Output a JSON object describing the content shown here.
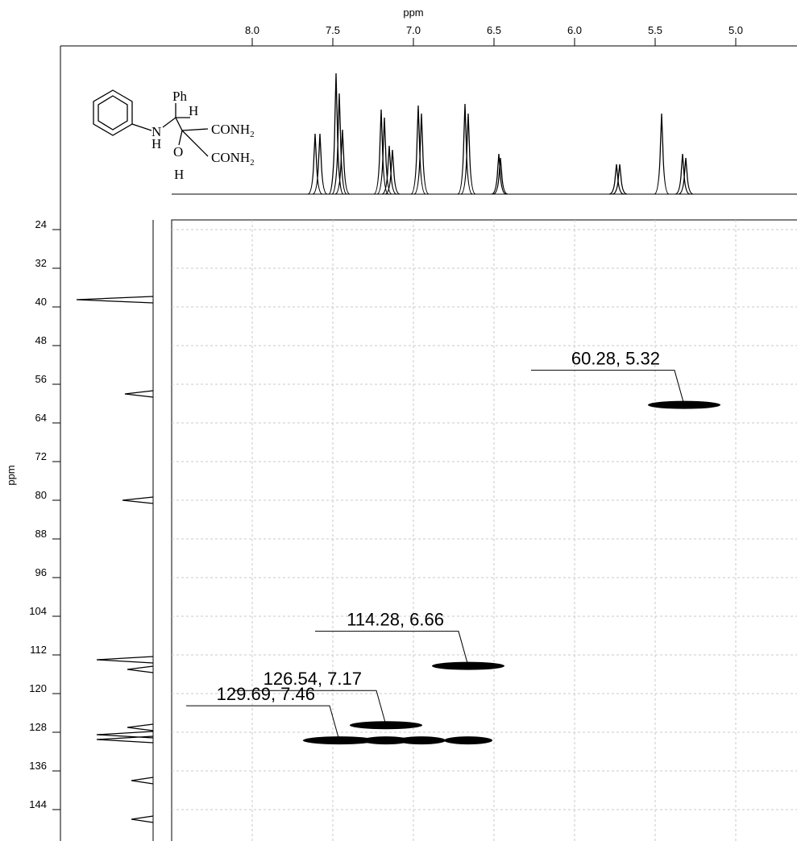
{
  "chart_data": {
    "type": "hsqc",
    "x_label": "ppm",
    "y_label": "ppm",
    "structure_labels": [
      "Ph",
      "H",
      "N",
      "H",
      "CONH",
      "2",
      "O",
      "H",
      "CONH",
      "2"
    ],
    "xlim": [
      8.5,
      4.62
    ],
    "ylim": [
      22,
      150.5
    ],
    "xticks": [
      {
        "value": 8,
        "label": "8.0"
      },
      7.5,
      {
        "value": 7,
        "label": "7.0"
      },
      6.5,
      {
        "value": 6,
        "label": "6.0"
      },
      5.5,
      {
        "value": 5,
        "label": "5.0"
      }
    ],
    "yticks": [
      24,
      32,
      40,
      48,
      56,
      64,
      72,
      80,
      88,
      96,
      104,
      112,
      120,
      128,
      136,
      144
    ],
    "grid": true,
    "proton_projection": {
      "x": [
        7.61,
        7.58,
        7.48,
        7.46,
        7.44,
        7.2,
        7.18,
        7.15,
        7.13,
        6.97,
        6.95,
        6.68,
        6.66,
        6.47,
        6.46,
        5.74,
        5.72,
        5.46,
        5.33,
        5.31
      ],
      "values": [
        75,
        75,
        150,
        125,
        80,
        105,
        95,
        60,
        55,
        110,
        100,
        112,
        100,
        50,
        45,
        37,
        37,
        100,
        50,
        45
      ]
    },
    "carbon_projection": {
      "x": [
        38.5,
        58,
        80,
        113,
        115,
        127,
        128.5,
        129.5,
        138,
        146
      ],
      "values": [
        95,
        35,
        38,
        70,
        32,
        32,
        70,
        70,
        27,
        27
      ]
    },
    "cross_peaks": {
      "x": [
        5.32,
        6.66,
        7.17,
        7.46,
        6.95,
        6.66,
        7.17
      ],
      "y": [
        60.28,
        114.28,
        126.54,
        129.69,
        129.69,
        129.69,
        129.69
      ]
    },
    "annotations": [
      {
        "label": "60.28, 5.32",
        "x": 5.32,
        "y": 60.28
      },
      {
        "label": "114.28, 6.66",
        "x": 6.66,
        "y": 114.28
      },
      {
        "label": "126.54, 7.17",
        "x": 7.17,
        "y": 126.54
      },
      {
        "label": "129.69, 7.46",
        "x": 7.46,
        "y": 129.69
      }
    ]
  }
}
